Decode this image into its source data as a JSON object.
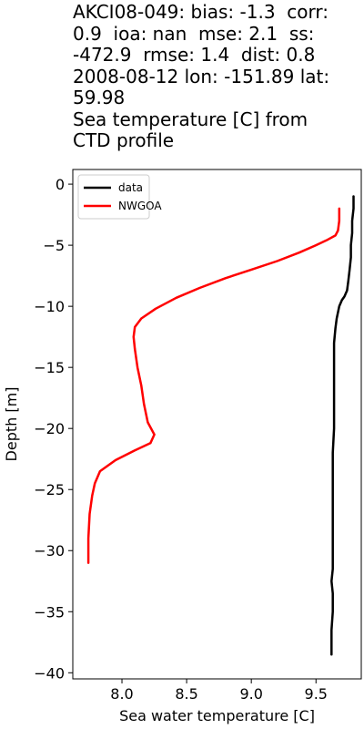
{
  "chart_data": {
    "type": "line",
    "title": "AKCI08-049: bias: -1.3  corr:\n0.9  ioa: nan  mse: 2.1  ss:\n-472.9  rmse: 1.4  dist: 0.8\n2008-08-12 lon: -151.89 lat:\n59.98\nSea temperature [C] from\nCTD profile",
    "xlabel": "Sea water temperature [C]",
    "ylabel": "Depth [m]",
    "xlim": [
      7.62,
      9.85
    ],
    "ylim": [
      -40.5,
      1.2
    ],
    "xticks": [
      8.0,
      8.5,
      9.0,
      9.5
    ],
    "xtick_labels": [
      "8.0",
      "8.5",
      "9.0",
      "9.5"
    ],
    "yticks": [
      0,
      -5,
      -10,
      -15,
      -20,
      -25,
      -30,
      -35,
      -40
    ],
    "ytick_labels": [
      "0",
      "−5",
      "−10",
      "−15",
      "−20",
      "−25",
      "−30",
      "−35",
      "−40"
    ],
    "grid": false,
    "legend_position": "top-left",
    "series": [
      {
        "name": "data",
        "color": "#000000",
        "points": [
          [
            9.79,
            -1.0
          ],
          [
            9.79,
            -2.0
          ],
          [
            9.78,
            -3.0
          ],
          [
            9.78,
            -4.0
          ],
          [
            9.77,
            -5.0
          ],
          [
            9.77,
            -6.0
          ],
          [
            9.76,
            -7.0
          ],
          [
            9.75,
            -7.9
          ],
          [
            9.74,
            -8.7
          ],
          [
            9.72,
            -9.2
          ],
          [
            9.7,
            -9.5
          ],
          [
            9.68,
            -10.0
          ],
          [
            9.66,
            -11.0
          ],
          [
            9.65,
            -11.8
          ],
          [
            9.64,
            -13.0
          ],
          [
            9.64,
            -14.5
          ],
          [
            9.64,
            -16.0
          ],
          [
            9.64,
            -18.0
          ],
          [
            9.64,
            -20.0
          ],
          [
            9.63,
            -22.0
          ],
          [
            9.63,
            -24.0
          ],
          [
            9.63,
            -26.0
          ],
          [
            9.63,
            -28.0
          ],
          [
            9.63,
            -30.0
          ],
          [
            9.63,
            -31.5
          ],
          [
            9.62,
            -32.5
          ],
          [
            9.63,
            -33.5
          ],
          [
            9.63,
            -35.0
          ],
          [
            9.62,
            -36.5
          ],
          [
            9.62,
            -38.5
          ]
        ]
      },
      {
        "name": "NWGOA",
        "color": "#ff0000",
        "points": [
          [
            9.68,
            -2.0
          ],
          [
            9.68,
            -3.0
          ],
          [
            9.67,
            -3.8
          ],
          [
            9.65,
            -4.2
          ],
          [
            9.58,
            -4.6
          ],
          [
            9.5,
            -5.0
          ],
          [
            9.37,
            -5.6
          ],
          [
            9.2,
            -6.3
          ],
          [
            9.0,
            -7.0
          ],
          [
            8.8,
            -7.7
          ],
          [
            8.6,
            -8.5
          ],
          [
            8.42,
            -9.3
          ],
          [
            8.26,
            -10.2
          ],
          [
            8.15,
            -11.0
          ],
          [
            8.1,
            -11.7
          ],
          [
            8.09,
            -12.5
          ],
          [
            8.1,
            -13.5
          ],
          [
            8.12,
            -15.0
          ],
          [
            8.15,
            -16.5
          ],
          [
            8.17,
            -18.0
          ],
          [
            8.2,
            -19.5
          ],
          [
            8.25,
            -20.5
          ],
          [
            8.22,
            -21.2
          ],
          [
            8.1,
            -21.8
          ],
          [
            7.95,
            -22.6
          ],
          [
            7.83,
            -23.5
          ],
          [
            7.79,
            -24.5
          ],
          [
            7.77,
            -25.5
          ],
          [
            7.75,
            -27.0
          ],
          [
            7.74,
            -29.0
          ],
          [
            7.74,
            -31.0
          ]
        ]
      }
    ]
  }
}
